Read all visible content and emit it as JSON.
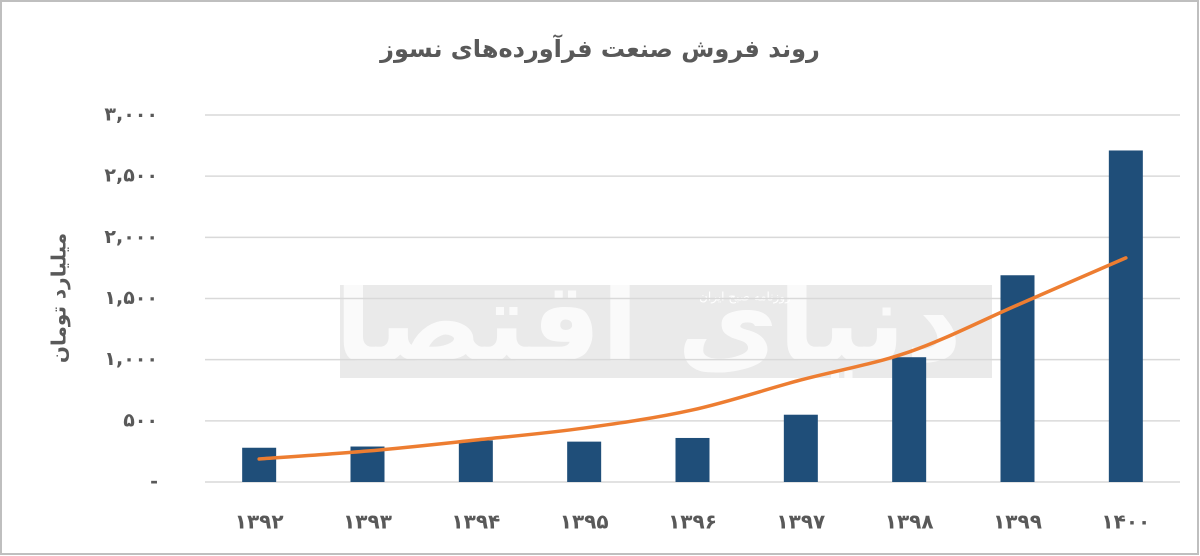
{
  "chart_data": {
    "type": "bar",
    "title": "روند فروش صنعت فرآورده‌های نسوز",
    "y_label": "میلیارد تومان",
    "categories": [
      "۱۳۹۲",
      "۱۳۹۳",
      "۱۳۹۴",
      "۱۳۹۵",
      "۱۳۹۶",
      "۱۳۹۷",
      "۱۳۹۸",
      "۱۳۹۹",
      "۱۴۰۰"
    ],
    "values": [
      280,
      290,
      340,
      330,
      360,
      550,
      1020,
      1690,
      2710
    ],
    "color": "#1f4e79",
    "trend": {
      "color": "#ed7d31",
      "values": [
        188,
        253,
        343,
        441,
        589,
        834,
        1063,
        1447,
        1832
      ]
    },
    "ylim": [
      0,
      3000
    ],
    "yticks": [
      {
        "value": 0,
        "label": "-"
      },
      {
        "value": 500,
        "label": "۵۰۰"
      },
      {
        "value": 1000,
        "label": "۱,۰۰۰"
      },
      {
        "value": 1500,
        "label": "۱,۵۰۰"
      },
      {
        "value": 2000,
        "label": "۲,۰۰۰"
      },
      {
        "value": 2500,
        "label": "۲,۵۰۰"
      },
      {
        "value": 3000,
        "label": "۳,۰۰۰"
      }
    ],
    "grid": true,
    "watermark": {
      "logo": "دنیای اقتصاد",
      "tagline": "روزنامه صبح ایران"
    }
  }
}
